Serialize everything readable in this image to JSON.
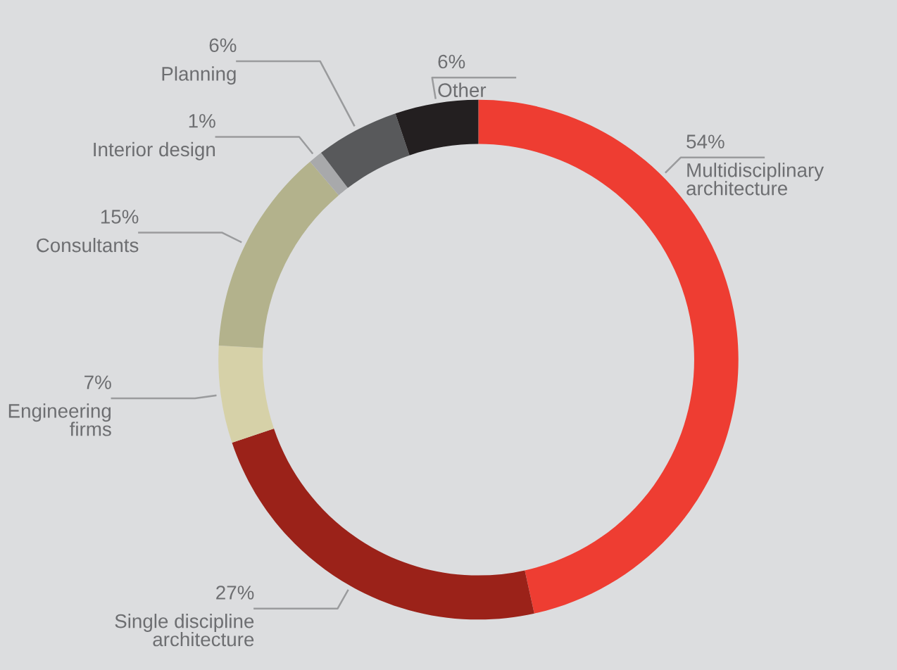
{
  "chart_data": {
    "type": "donut",
    "categories": [
      "Multidisciplinary\narchitecture",
      "Single discipline\narchitecture",
      "Engineering\nfirms",
      "Consultants",
      "Interior design",
      "Planning",
      "Other"
    ],
    "values": [
      54,
      27,
      7,
      15,
      1,
      6,
      6
    ],
    "value_labels": [
      "54%",
      "27%",
      "7%",
      "15%",
      "1%",
      "6%",
      "6%"
    ],
    "colors": [
      "#ee3d32",
      "#9b2219",
      "#d6d1a8",
      "#b3b28c",
      "#a8a9ab",
      "#58595b",
      "#231f20"
    ],
    "legend": false
  }
}
